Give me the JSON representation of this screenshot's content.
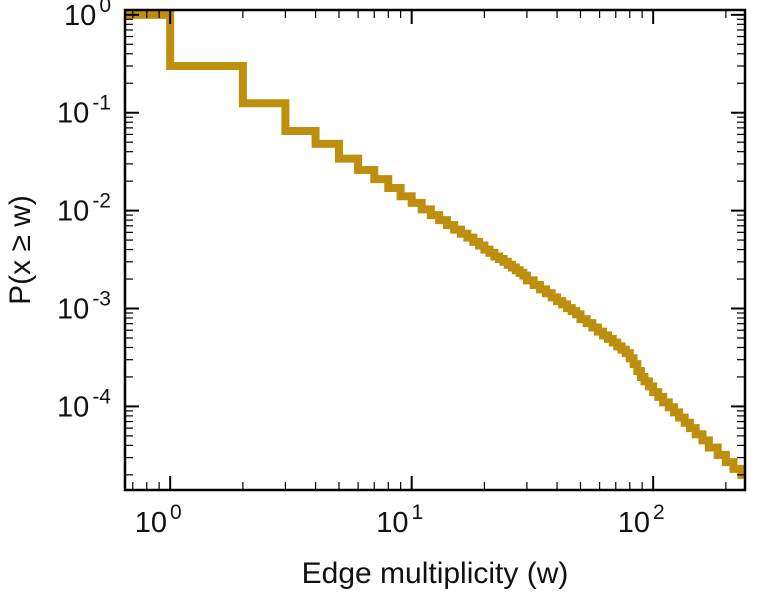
{
  "chart_data": {
    "type": "line",
    "subtype": "step-ccdf-loglog",
    "title": "",
    "xlabel": "Edge multiplicity (w)",
    "ylabel": "P(x ≥ w)",
    "x_scale": "log",
    "y_scale": "log",
    "xlim": [
      0.65,
      240
    ],
    "ylim": [
      1.4e-05,
      1.12
    ],
    "x_tick_exponents": [
      0,
      1,
      2
    ],
    "y_tick_exponents": [
      0,
      -1,
      -2,
      -3,
      -4
    ],
    "grid": false,
    "legend": false,
    "line_color": "#BE8E0E",
    "line_width": 8,
    "frame_color": "#000000",
    "points": [
      [
        1,
        1.0
      ],
      [
        2,
        0.3
      ],
      [
        3,
        0.125
      ],
      [
        4,
        0.065
      ],
      [
        5,
        0.048
      ],
      [
        6,
        0.034
      ],
      [
        7,
        0.026
      ],
      [
        8,
        0.021
      ],
      [
        9,
        0.017
      ],
      [
        10,
        0.014
      ],
      [
        11,
        0.012
      ],
      [
        12,
        0.0103
      ],
      [
        13,
        0.009
      ],
      [
        14,
        0.008
      ],
      [
        15,
        0.0071
      ],
      [
        16,
        0.0064
      ],
      [
        17,
        0.0058
      ],
      [
        18,
        0.0053
      ],
      [
        19,
        0.0048
      ],
      [
        20,
        0.0044
      ],
      [
        21,
        0.004
      ],
      [
        22,
        0.0037
      ],
      [
        23,
        0.0034
      ],
      [
        24,
        0.0032
      ],
      [
        25,
        0.003
      ],
      [
        26,
        0.0028
      ],
      [
        27,
        0.00262
      ],
      [
        28,
        0.00246
      ],
      [
        29,
        0.00231
      ],
      [
        30,
        0.00217
      ],
      [
        32,
        0.00194
      ],
      [
        34,
        0.00174
      ],
      [
        36,
        0.00157
      ],
      [
        38,
        0.00143
      ],
      [
        40,
        0.0013
      ],
      [
        42,
        0.00119
      ],
      [
        44,
        0.0011
      ],
      [
        46,
        0.00101
      ],
      [
        48,
        0.00094
      ],
      [
        50,
        0.00087
      ],
      [
        53,
        0.00078
      ],
      [
        56,
        0.00071
      ],
      [
        59,
        0.00064
      ],
      [
        62,
        0.00058
      ],
      [
        65,
        0.00053
      ],
      [
        68,
        0.00049
      ],
      [
        71,
        0.00045
      ],
      [
        74,
        0.00041
      ],
      [
        77,
        0.00038
      ],
      [
        80,
        0.00035
      ],
      [
        83,
        0.00031
      ],
      [
        86,
        0.00027
      ],
      [
        89,
        0.00023
      ],
      [
        92,
        0.0002
      ],
      [
        96,
        0.00018
      ],
      [
        100,
        0.00016
      ],
      [
        105,
        0.00014
      ],
      [
        110,
        0.000125
      ],
      [
        116,
        0.00011
      ],
      [
        122,
        9.8e-05
      ],
      [
        128,
        8.7e-05
      ],
      [
        135,
        7.7e-05
      ],
      [
        142,
        6.8e-05
      ],
      [
        150,
        6e-05
      ],
      [
        160,
        5.2e-05
      ],
      [
        170,
        4.5e-05
      ],
      [
        185,
        3.8e-05
      ],
      [
        200,
        3.2e-05
      ],
      [
        215,
        2.7e-05
      ],
      [
        232,
        2.3e-05
      ],
      [
        250,
        2e-05
      ],
      [
        250,
        1.8e-05
      ]
    ]
  }
}
